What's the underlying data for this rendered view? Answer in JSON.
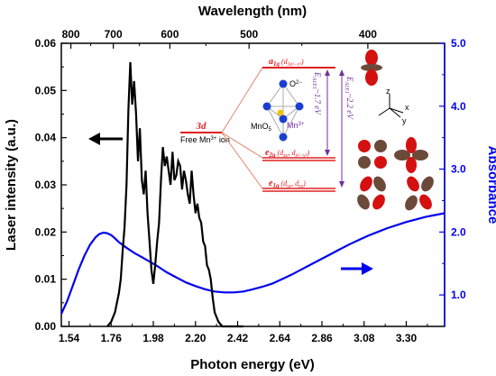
{
  "chart_data": {
    "type": "line",
    "xlabel": "Photon energy (eV)",
    "top_xlabel": "Wavelength (nm)",
    "ylabel_left": "Laser intensity (a.u.)",
    "ylabel_right": "Absorbance",
    "xlim": [
      1.5,
      3.5
    ],
    "ylim_left": [
      0.0,
      0.06
    ],
    "ylim_right": [
      0.5,
      5.0
    ],
    "x_ticks": [
      "1.54",
      "1.76",
      "1.98",
      "2.20",
      "2.42",
      "2.64",
      "2.86",
      "3.08",
      "3.30"
    ],
    "y_left_ticks": [
      "0.00",
      "0.01",
      "0.02",
      "0.03",
      "0.04",
      "0.05",
      "0.06"
    ],
    "y_right_ticks": [
      "1.0",
      "2.0",
      "3.0",
      "4.0",
      "5.0"
    ],
    "top_ticks": [
      "800",
      "700",
      "600",
      "500",
      "400"
    ],
    "colors": {
      "laser": "#000000",
      "absorbance": "#0000ee",
      "levels": "#e02020",
      "arrows": "#7030a0"
    },
    "series": [
      {
        "axis": "left",
        "x": [
          1.74,
          1.76,
          1.78,
          1.8,
          1.81,
          1.82,
          1.83,
          1.84,
          1.85,
          1.86,
          1.87,
          1.88,
          1.89,
          1.9,
          1.91,
          1.92,
          1.93,
          1.94,
          1.95,
          1.96,
          1.97,
          1.98,
          1.99,
          2.0,
          2.01,
          2.02,
          2.03,
          2.04,
          2.05,
          2.06,
          2.07,
          2.08,
          2.09,
          2.1,
          2.11,
          2.12,
          2.13,
          2.14,
          2.15,
          2.16,
          2.17,
          2.18,
          2.19,
          2.2,
          2.21,
          2.22,
          2.23,
          2.24,
          2.25,
          2.26,
          2.27,
          2.28,
          2.29,
          2.3,
          2.32,
          2.34,
          2.36,
          2.4,
          2.45
        ],
        "values": [
          0.0,
          0.001,
          0.003,
          0.007,
          0.01,
          0.016,
          0.021,
          0.03,
          0.046,
          0.056,
          0.047,
          0.052,
          0.045,
          0.035,
          0.042,
          0.031,
          0.028,
          0.033,
          0.024,
          0.018,
          0.012,
          0.009,
          0.013,
          0.018,
          0.022,
          0.031,
          0.038,
          0.034,
          0.036,
          0.033,
          0.03,
          0.037,
          0.031,
          0.032,
          0.035,
          0.034,
          0.029,
          0.033,
          0.031,
          0.028,
          0.026,
          0.033,
          0.028,
          0.024,
          0.026,
          0.023,
          0.022,
          0.018,
          0.017,
          0.013,
          0.012,
          0.01,
          0.006,
          0.003,
          0.001,
          0.0,
          0.0,
          0.0,
          0.0
        ]
      },
      {
        "axis": "right",
        "x": [
          1.5,
          1.53,
          1.56,
          1.59,
          1.62,
          1.65,
          1.68,
          1.7,
          1.72,
          1.74,
          1.76,
          1.78,
          1.8,
          1.84,
          1.88,
          1.92,
          1.96,
          2.0,
          2.05,
          2.1,
          2.15,
          2.2,
          2.25,
          2.3,
          2.35,
          2.4,
          2.45,
          2.5,
          2.55,
          2.6,
          2.65,
          2.7,
          2.75,
          2.8,
          2.85,
          2.9,
          2.95,
          3.0,
          3.05,
          3.1,
          3.15,
          3.2,
          3.25,
          3.3,
          3.35,
          3.4,
          3.45,
          3.5
        ],
        "values": [
          0.7,
          0.9,
          1.15,
          1.4,
          1.62,
          1.8,
          1.92,
          1.97,
          1.99,
          1.98,
          1.95,
          1.9,
          1.84,
          1.75,
          1.67,
          1.6,
          1.53,
          1.46,
          1.36,
          1.28,
          1.2,
          1.14,
          1.09,
          1.055,
          1.04,
          1.04,
          1.055,
          1.09,
          1.13,
          1.18,
          1.25,
          1.32,
          1.4,
          1.48,
          1.56,
          1.64,
          1.72,
          1.8,
          1.87,
          1.94,
          2.0,
          2.06,
          2.11,
          2.16,
          2.2,
          2.24,
          2.27,
          2.3
        ]
      }
    ]
  },
  "inset": {
    "level_3d": "3d",
    "free_ion": "Free Mn",
    "ion_sup": "3+",
    "ion_suffix": " ion",
    "a1g": "a",
    "a1g_sub": "1g",
    "a1g_orb": "(d",
    "a1g_orb_sub": "3z²−r²",
    "e2g": "e",
    "e2g_sub": "2g",
    "e2g_orb": "(d",
    "e2g_orb_sub": "xy",
    "e2g_orb_mid": ", d",
    "e2g_orb_sub2": "x²−y²",
    "e1g": "e",
    "e1g_sub": "1g",
    "e1g_orb": "(d",
    "e1g_orb_sub": "yz",
    "e1g_orb_mid": ", d",
    "e1g_orb_sub2": "zx",
    "o_label": "O",
    "o_sup": "2−",
    "mn_label": "Mn",
    "mn_sup": "3+",
    "mno5": "MnO",
    "mno5_sub": "5",
    "gap1": "E",
    "gap1_sub": "A1E1",
    "gap1_val": "~1.7 eV",
    "gap2": "E",
    "gap2_sub": "A1E1",
    "gap2_val": "~2.2 eV",
    "ax_z": "z",
    "ax_x": "x",
    "ax_y": "y"
  }
}
